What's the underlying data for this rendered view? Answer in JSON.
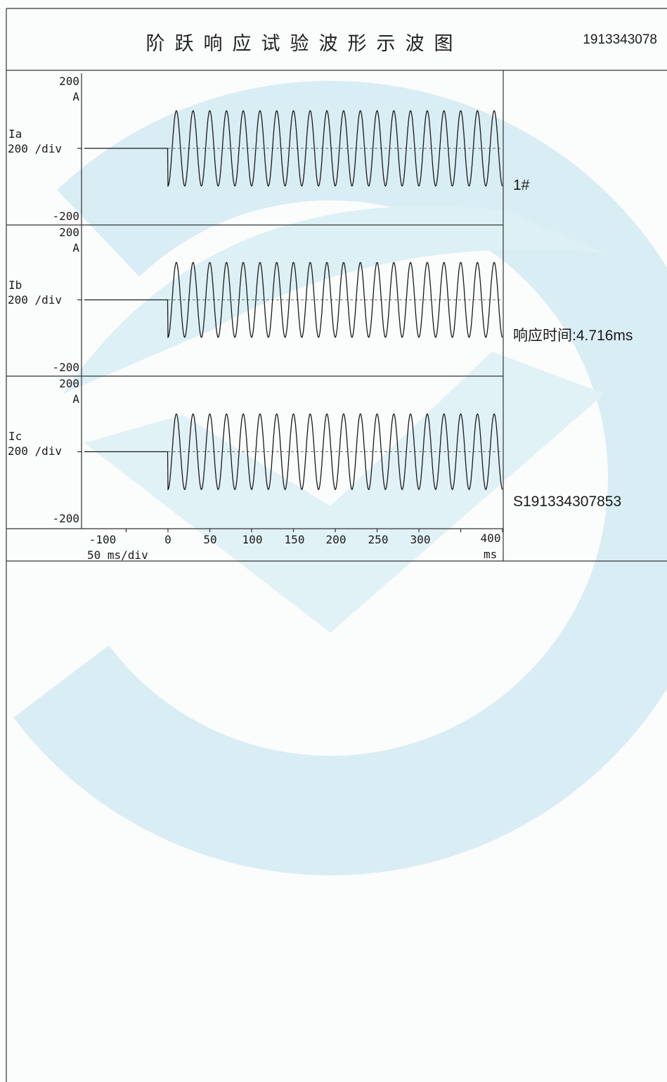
{
  "title": "阶跃响应试验波形示波图",
  "doc_number": "1913343078",
  "side_info": {
    "device": "1#",
    "response_time": "响应时间:4.716ms",
    "serial": "S191334307853"
  },
  "colors": {
    "ink": "#1a1a1a",
    "watermark": "#d9edf4",
    "background": "#fbfcfc"
  },
  "chart_data": [
    {
      "type": "line",
      "series": [
        {
          "name": "Ia",
          "freq_hz": 50,
          "amplitude_a": 100,
          "step_time_ms": 0,
          "pre_step_value": 0
        }
      ],
      "y_top_label": "200",
      "y_unit": "A",
      "y_scale_label": "200 /div",
      "y_bottom_label": "-200",
      "ylim": [
        -200,
        200
      ],
      "xlim": [
        -100,
        400
      ]
    },
    {
      "type": "line",
      "series": [
        {
          "name": "Ib",
          "freq_hz": 50,
          "amplitude_a": 100,
          "step_time_ms": 0,
          "pre_step_value": 0
        }
      ],
      "y_top_label": "200",
      "y_unit": "A",
      "y_scale_label": "200 /div",
      "y_bottom_label": "-200",
      "ylim": [
        -200,
        200
      ],
      "xlim": [
        -100,
        400
      ]
    },
    {
      "type": "line",
      "series": [
        {
          "name": "Ic",
          "freq_hz": 50,
          "amplitude_a": 100,
          "step_time_ms": 0,
          "pre_step_value": 0
        }
      ],
      "y_top_label": "200",
      "y_unit": "A",
      "y_scale_label": "200 /div",
      "y_bottom_label": "-200",
      "ylim": [
        -200,
        200
      ],
      "xlim": [
        -100,
        400
      ]
    }
  ],
  "x_axis": {
    "ticks": [
      "-100",
      "0",
      "50",
      "100",
      "150",
      "200",
      "250",
      "300",
      "400"
    ],
    "scale_label": "50 ms/div",
    "unit": "ms"
  }
}
